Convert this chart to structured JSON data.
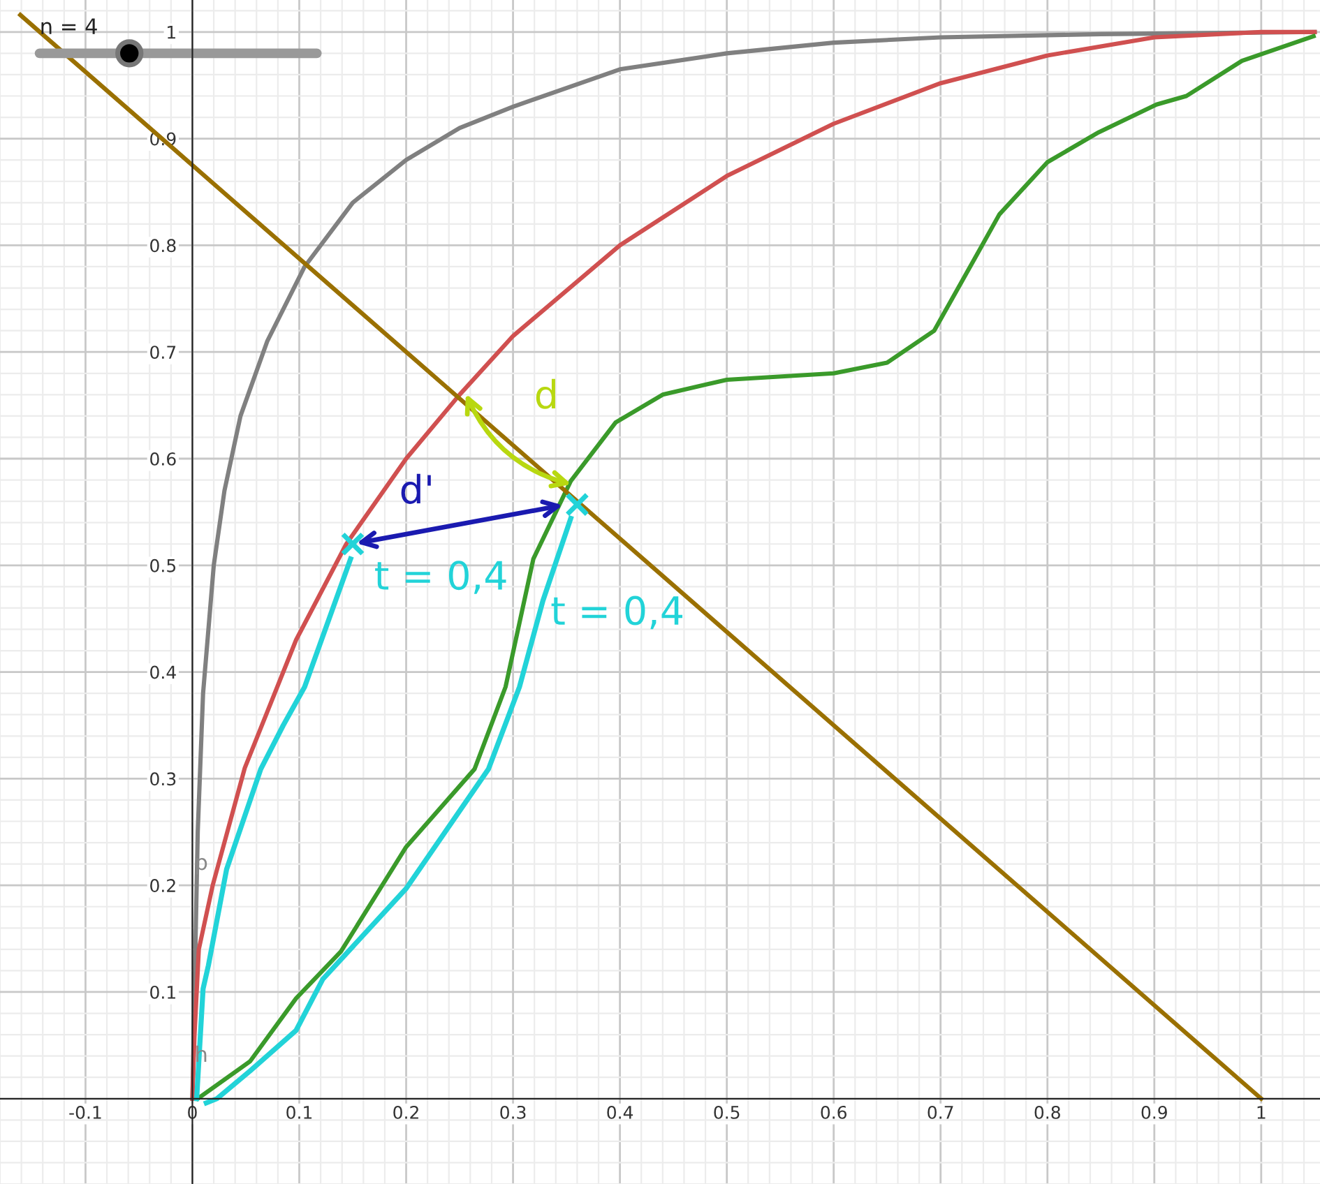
{
  "chart_data": {
    "type": "line",
    "xlim": [
      -0.161,
      1.055
    ],
    "ylim": [
      -0.062,
      1.03
    ],
    "xticks": [
      {
        "value": -0.1,
        "label": "-0.1"
      },
      0,
      0.1,
      0.2,
      0.3,
      0.4,
      0.5,
      0.6,
      0.7,
      0.8,
      0.9,
      1
    ],
    "yticks": [
      0.1,
      0.2,
      0.3,
      0.4,
      0.5,
      0.6,
      0.7,
      0.8,
      0.9,
      1
    ],
    "grid": true,
    "series": [
      {
        "color": "#808080",
        "x": [
          0,
          0.002,
          0.005,
          0.01,
          0.02,
          0.03,
          0.045,
          0.07,
          0.105,
          0.15,
          0.2,
          0.25,
          0.3,
          0.4,
          0.5,
          0.6,
          0.7,
          0.85,
          1.05
        ],
        "values": [
          0,
          0.1,
          0.25,
          0.38,
          0.5,
          0.57,
          0.64,
          0.71,
          0.78,
          0.84,
          0.88,
          0.91,
          0.93,
          0.965,
          0.98,
          0.99,
          0.995,
          0.998,
          1
        ]
      },
      {
        "color": "#d05050",
        "x": [
          0,
          0.002,
          0.006,
          0.019,
          0.049,
          0.097,
          0.144,
          0.2,
          0.25,
          0.3,
          0.4,
          0.5,
          0.6,
          0.7,
          0.8,
          0.9,
          1.0,
          1.05
        ],
        "values": [
          0,
          0.06,
          0.14,
          0.2,
          0.31,
          0.43,
          0.52,
          0.6,
          0.66,
          0.715,
          0.8,
          0.865,
          0.914,
          0.952,
          0.978,
          0.995,
          1.0,
          1.0
        ]
      },
      {
        "color": "#3a9a2a",
        "x": [
          0.005,
          0.054,
          0.097,
          0.139,
          0.2,
          0.264,
          0.293,
          0.319,
          0.354,
          0.396,
          0.44,
          0.5,
          0.6,
          0.65,
          0.694,
          0.735,
          0.755,
          0.8,
          0.848,
          0.902,
          0.93,
          0.982,
          1.049
        ],
        "values": [
          0,
          0.035,
          0.094,
          0.138,
          0.236,
          0.309,
          0.386,
          0.506,
          0.579,
          0.634,
          0.66,
          0.674,
          0.68,
          0.69,
          0.72,
          0.793,
          0.829,
          0.878,
          0.906,
          0.932,
          0.94,
          0.973,
          0.996
        ]
      },
      {
        "color": "#22d3d8",
        "x": [
          0.004,
          0.01,
          0.015,
          0.032,
          0.064,
          0.085,
          0.105,
          0.148
        ],
        "values": [
          0,
          0.103,
          0.125,
          0.215,
          0.309,
          0.35,
          0.386,
          0.506
        ]
      },
      {
        "color": "#22d3d8",
        "x": [
          0.013,
          0.023,
          0.054,
          0.097,
          0.122,
          0.2,
          0.277,
          0.306,
          0.328,
          0.354
        ],
        "values": [
          -0.004,
          0,
          0.026,
          0.064,
          0.112,
          0.197,
          0.309,
          0.386,
          0.467,
          0.544
        ]
      },
      {
        "color": "#9a7000",
        "x": [
          -0.161,
          1.0
        ],
        "values": [
          1.016,
          0
        ]
      }
    ],
    "annotations": [
      "n = 4",
      "d",
      "d'",
      {
        "text": "t = 0,4",
        "x": 0.15,
        "y": 0.52
      },
      {
        "text": "t = 0,4",
        "x": 0.36,
        "y": 0.557
      },
      {
        "text": "p",
        "x": 0.0,
        "y": 0.22
      },
      {
        "text": "h",
        "x": 0.0,
        "y": 0.04
      }
    ]
  }
}
